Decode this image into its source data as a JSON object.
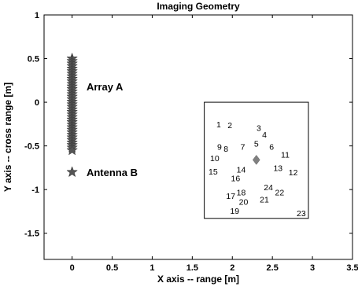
{
  "chart_data": {
    "type": "scatter",
    "title": "Imaging Geometry",
    "xlabel": "X axis -- range [m]",
    "ylabel": "Y axis -- cross range [m]",
    "xlim": [
      -0.35,
      3.5
    ],
    "ylim": [
      -1.8,
      1.0
    ],
    "xticks": [
      "0",
      "0.5",
      "1",
      "1.5",
      "2",
      "2.5",
      "3",
      "3.5"
    ],
    "yticks": [
      "1",
      "0.5",
      "0",
      "-0.5",
      "-1",
      "-1.5"
    ],
    "xtick_values": [
      0,
      0.5,
      1,
      1.5,
      2,
      2.5,
      3,
      3.5
    ],
    "ytick_values": [
      1,
      0.5,
      0,
      -0.5,
      -1,
      -1.5
    ],
    "grid": false,
    "array_a": {
      "label": "Array A",
      "x": 0,
      "y_from": -0.55,
      "y_to": 0.5,
      "marker_color": "#555555"
    },
    "antenna_b": {
      "label": "Antenna B",
      "x": 0,
      "y": -0.8,
      "marker_color": "#555555"
    },
    "scene_box": {
      "x0": 1.65,
      "x1": 2.95,
      "y0": -1.33,
      "y1": 0.0
    },
    "center_marker": {
      "x": 2.3,
      "y": -0.66,
      "color": "#808080"
    },
    "targets": [
      {
        "label": "1",
        "x": 1.83,
        "y": -0.25
      },
      {
        "label": "2",
        "x": 1.97,
        "y": -0.26
      },
      {
        "label": "3",
        "x": 2.33,
        "y": -0.29
      },
      {
        "label": "4",
        "x": 2.4,
        "y": -0.37
      },
      {
        "label": "5",
        "x": 2.3,
        "y": -0.47
      },
      {
        "label": "6",
        "x": 2.49,
        "y": -0.51
      },
      {
        "label": "7",
        "x": 2.13,
        "y": -0.51
      },
      {
        "label": "8",
        "x": 1.92,
        "y": -0.53
      },
      {
        "label": "9",
        "x": 1.84,
        "y": -0.51
      },
      {
        "label": "10",
        "x": 1.78,
        "y": -0.64
      },
      {
        "label": "11",
        "x": 2.66,
        "y": -0.6
      },
      {
        "label": "12",
        "x": 2.76,
        "y": -0.8
      },
      {
        "label": "13",
        "x": 2.57,
        "y": -0.75
      },
      {
        "label": "14",
        "x": 2.11,
        "y": -0.77
      },
      {
        "label": "15",
        "x": 1.76,
        "y": -0.79
      },
      {
        "label": "16",
        "x": 2.04,
        "y": -0.87
      },
      {
        "label": "17",
        "x": 1.98,
        "y": -1.07
      },
      {
        "label": "18",
        "x": 2.11,
        "y": -1.03
      },
      {
        "label": "19",
        "x": 2.03,
        "y": -1.24
      },
      {
        "label": "20",
        "x": 2.14,
        "y": -1.14
      },
      {
        "label": "21",
        "x": 2.4,
        "y": -1.11
      },
      {
        "label": "22",
        "x": 2.59,
        "y": -1.03
      },
      {
        "label": "23",
        "x": 2.86,
        "y": -1.27
      },
      {
        "label": "24",
        "x": 2.45,
        "y": -0.97
      }
    ]
  }
}
